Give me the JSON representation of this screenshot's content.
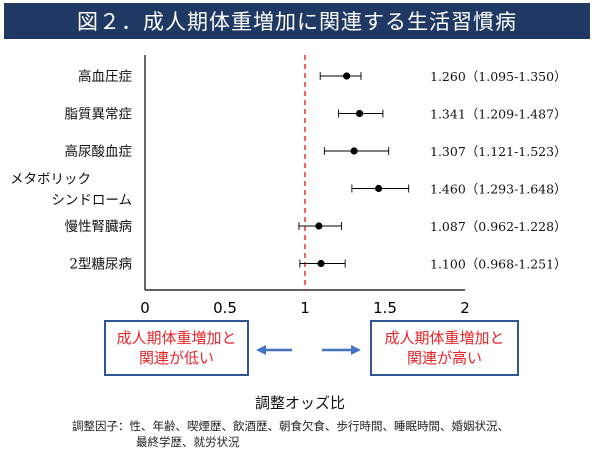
{
  "title": "図２．成人期体重増加に関連する生活習慣病",
  "chart_data": {
    "type": "forest",
    "categories": [
      [
        "高血圧症"
      ],
      [
        "脂質異常症"
      ],
      [
        "高尿酸血症"
      ],
      [
        "メタボリック",
        "シンドローム"
      ],
      [
        "慢性腎臓病"
      ],
      [
        "2型糖尿病"
      ]
    ],
    "or": [
      1.26,
      1.341,
      1.307,
      1.46,
      1.087,
      1.1
    ],
    "ci_low": [
      1.095,
      1.209,
      1.121,
      1.293,
      0.962,
      0.968
    ],
    "ci_high": [
      1.35,
      1.487,
      1.523,
      1.648,
      1.228,
      1.251
    ],
    "value_labels": [
      "1.260（1.095-1.350）",
      "1.341（1.209-1.487）",
      "1.307（1.121-1.523）",
      "1.460（1.293-1.648）",
      "1.087（0.962-1.228）",
      "1.100（0.968-1.251）"
    ],
    "xlim": [
      0,
      2
    ],
    "x_ticks": [
      "0",
      "0.5",
      "1",
      "1.5",
      "2"
    ],
    "reference_line": 1,
    "xlabel": "調整オッズ比",
    "colors": {
      "reference": "#e8262a",
      "marker": "#000000",
      "arrow": "#4472c4"
    }
  },
  "notes": {
    "left": [
      "成人期体重増加と",
      "関連が低い"
    ],
    "right": [
      "成人期体重増加と",
      "関連が高い"
    ]
  },
  "footnote": {
    "line1": "調整因子：性、年齢、喫煙歴、飲酒歴、朝食欠食、歩行時間、睡眠時間、婚姻状況、",
    "line2": "最終学歴、就労状況"
  }
}
